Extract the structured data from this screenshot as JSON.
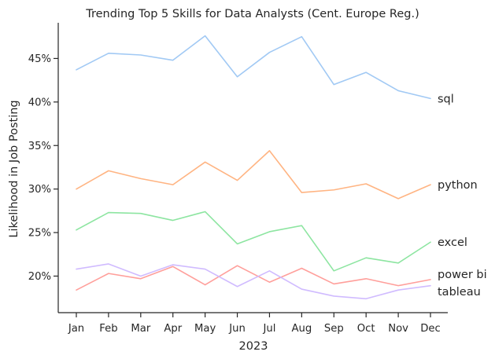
{
  "chart_data": {
    "type": "line",
    "title": "Trending Top 5 Skills for Data Analysts (Cent. Europe Reg.)",
    "xlabel": "2023",
    "ylabel": "Likelihood in Job Posting",
    "categories": [
      "Jan",
      "Feb",
      "Mar",
      "Apr",
      "May",
      "Jun",
      "Jul",
      "Aug",
      "Sep",
      "Oct",
      "Nov",
      "Dec"
    ],
    "ylim": [
      15.8,
      49.1
    ],
    "yticks": [
      20,
      25,
      30,
      35,
      40,
      45
    ],
    "ytick_format": "%",
    "grid": false,
    "legend": "none (labels at line ends)",
    "series": [
      {
        "name": "sql",
        "color": "#a1c9f4",
        "values": [
          43.7,
          45.6,
          45.4,
          44.8,
          47.6,
          42.9,
          45.7,
          47.5,
          42.0,
          43.4,
          41.3,
          40.4
        ]
      },
      {
        "name": "python",
        "color": "#ffb482",
        "values": [
          30.0,
          32.1,
          31.2,
          30.5,
          33.1,
          31.0,
          34.4,
          29.6,
          29.9,
          30.6,
          28.9,
          30.5
        ]
      },
      {
        "name": "excel",
        "color": "#8de5a1",
        "values": [
          25.3,
          27.3,
          27.2,
          26.4,
          27.4,
          23.7,
          25.1,
          25.8,
          20.6,
          22.1,
          21.5,
          23.9
        ]
      },
      {
        "name": "power bi",
        "color": "#ff9f9b",
        "values": [
          18.4,
          20.3,
          19.7,
          21.1,
          19.0,
          21.2,
          19.3,
          20.9,
          19.1,
          19.7,
          18.9,
          19.6
        ]
      },
      {
        "name": "tableau",
        "color": "#d0bbff",
        "values": [
          20.8,
          21.4,
          20.0,
          21.3,
          20.8,
          18.8,
          20.6,
          18.5,
          17.7,
          17.4,
          18.4,
          18.9
        ]
      }
    ]
  }
}
